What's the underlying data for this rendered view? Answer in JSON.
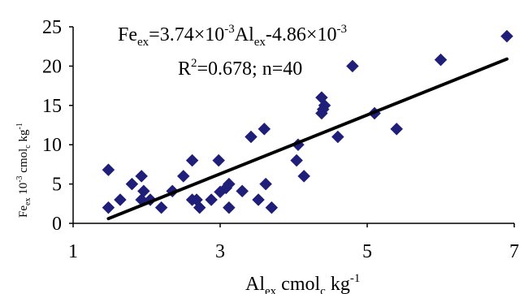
{
  "chart_data": {
    "type": "scatter",
    "title": "",
    "xlim": [
      1,
      7
    ],
    "ylim": [
      0,
      25
    ],
    "x_ticks": [
      "1",
      "3",
      "5",
      "7"
    ],
    "y_ticks": [
      "0",
      "5",
      "10",
      "15",
      "20",
      "25"
    ],
    "xlabel": {
      "base": "Al",
      "sub": "ex",
      "mid": " cmol",
      "sub2": "c",
      "tail": " kg",
      "sup": "-1"
    },
    "ylabel": {
      "base": "Fe",
      "sub": "ex",
      "mid": " 10",
      "sup": "-3",
      "mid2": " cmol",
      "sub2": "c",
      "tail": " kg",
      "sup2": "-1"
    },
    "equation": {
      "p1": "Fe",
      "s1": "ex",
      "p2": "=3.74×10",
      "e1": "-3",
      "p3": "Al",
      "s2": "ex",
      "p4": "-4.86×10",
      "e2": "-3"
    },
    "r2": {
      "p1": "R",
      "e1": "2",
      "p2": "=0.678; n=40"
    },
    "trendline": {
      "x": [
        1.48,
        6.9
      ],
      "y": [
        0.6,
        20.9
      ]
    },
    "marker_color": "#1f1f7a",
    "line_color": "#000000",
    "points": [
      {
        "x": 1.48,
        "y": 6.8
      },
      {
        "x": 1.48,
        "y": 2.0
      },
      {
        "x": 1.64,
        "y": 3.0
      },
      {
        "x": 1.8,
        "y": 5.0
      },
      {
        "x": 1.93,
        "y": 6.0
      },
      {
        "x": 1.93,
        "y": 3.0
      },
      {
        "x": 1.96,
        "y": 4.1
      },
      {
        "x": 2.05,
        "y": 3.0
      },
      {
        "x": 2.2,
        "y": 2.0
      },
      {
        "x": 2.35,
        "y": 4.1
      },
      {
        "x": 2.5,
        "y": 6.0
      },
      {
        "x": 2.62,
        "y": 8.0
      },
      {
        "x": 2.62,
        "y": 3.0
      },
      {
        "x": 2.68,
        "y": 3.0
      },
      {
        "x": 2.72,
        "y": 2.0
      },
      {
        "x": 2.88,
        "y": 3.0
      },
      {
        "x": 2.98,
        "y": 8.0
      },
      {
        "x": 3.0,
        "y": 4.0
      },
      {
        "x": 3.08,
        "y": 4.5
      },
      {
        "x": 3.12,
        "y": 5.0
      },
      {
        "x": 3.12,
        "y": 2.0
      },
      {
        "x": 3.3,
        "y": 4.1
      },
      {
        "x": 3.42,
        "y": 11.0
      },
      {
        "x": 3.52,
        "y": 3.0
      },
      {
        "x": 3.6,
        "y": 12.0
      },
      {
        "x": 3.62,
        "y": 5.0
      },
      {
        "x": 3.7,
        "y": 2.0
      },
      {
        "x": 4.04,
        "y": 8.0
      },
      {
        "x": 4.06,
        "y": 10.0
      },
      {
        "x": 4.14,
        "y": 6.0
      },
      {
        "x": 4.38,
        "y": 14.0
      },
      {
        "x": 4.38,
        "y": 16.0
      },
      {
        "x": 4.42,
        "y": 15.0
      },
      {
        "x": 4.6,
        "y": 11.0
      },
      {
        "x": 4.8,
        "y": 20.0
      },
      {
        "x": 5.1,
        "y": 14.0
      },
      {
        "x": 5.4,
        "y": 12.0
      },
      {
        "x": 6.0,
        "y": 20.8
      },
      {
        "x": 6.9,
        "y": 23.8
      },
      {
        "x": 4.4,
        "y": 14.5
      }
    ]
  }
}
